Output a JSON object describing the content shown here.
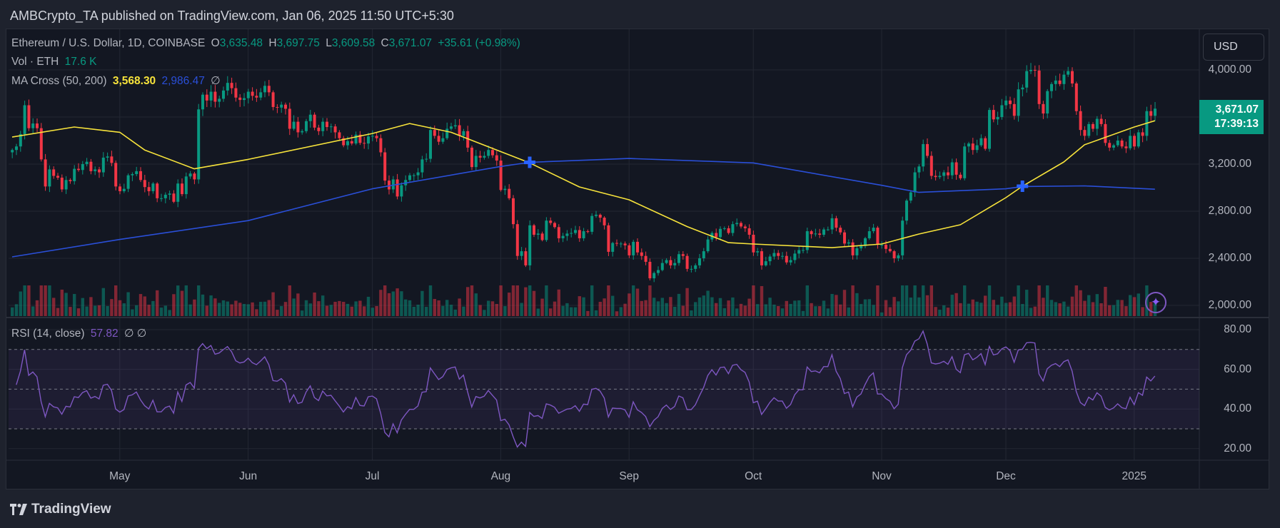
{
  "publisher_line": "AMBCrypto_TA published on TradingView.com, Jan 06, 2025 11:50 UTC+5:30",
  "legend": {
    "symbol": "Ethereum / U.S. Dollar, 1D, COINBASE",
    "o_label": "O",
    "o": "3,635.48",
    "h_label": "H",
    "h": "3,697.75",
    "l_label": "L",
    "l": "3,609.58",
    "c_label": "C",
    "c": "3,671.07",
    "change": "+35.61 (+0.98%)",
    "vol_label": "Vol · ETH",
    "vol": "17.6 K",
    "ma_label": "MA Cross (50, 200)",
    "ma50": "3,568.30",
    "ma200": "2,986.47",
    "ma_extra": "∅",
    "rsi_label": "RSI (14, close)",
    "rsi": "57.82",
    "rsi_extra": "∅ ∅"
  },
  "currency_button": "USD",
  "last_price": {
    "price": "3,671.07",
    "countdown": "17:39:13",
    "color": "#089981"
  },
  "footer_brand": "TradingView",
  "colors": {
    "up": "#089981",
    "down": "#f23645",
    "ma50": "#f7e33b",
    "ma200": "#2a4fd8",
    "rsi": "#7e57c2",
    "background": "#131722"
  },
  "chart_data": [
    {
      "type": "candlestick",
      "title": "Ethereum / U.S. Dollar, 1D, COINBASE",
      "ylim": [
        2000,
        4100
      ],
      "y_ticks": [
        {
          "value": 4000,
          "label": "4,000.00"
        },
        {
          "value": 3200,
          "label": "3,200.00"
        },
        {
          "value": 2800,
          "label": "2,800.00"
        },
        {
          "value": 2400,
          "label": "2,400.00"
        },
        {
          "value": 2000,
          "label": "2,000.00"
        }
      ],
      "x_ticks": [
        {
          "date": "2024-05-01",
          "label": "May"
        },
        {
          "date": "2024-06-01",
          "label": "Jun"
        },
        {
          "date": "2024-07-01",
          "label": "Jul"
        },
        {
          "date": "2024-08-01",
          "label": "Aug"
        },
        {
          "date": "2024-09-01",
          "label": "Sep"
        },
        {
          "date": "2024-10-01",
          "label": "Oct"
        },
        {
          "date": "2024-11-01",
          "label": "Nov"
        },
        {
          "date": "2024-12-01",
          "label": "Dec"
        },
        {
          "date": "2025-01-01",
          "label": "2025"
        }
      ],
      "grid": true,
      "daily_closes": [
        {
          "month": "2024-04",
          "first_day": 5,
          "closes": [
            3320,
            3350,
            3455,
            3700,
            3505,
            3545,
            3505,
            3240,
            3010,
            3155,
            3100,
            3085,
            2985,
            3065,
            3055,
            3160,
            3150,
            3200,
            3220,
            3140,
            3155,
            3130,
            3255,
            3265,
            3210,
            3010
          ]
        },
        {
          "month": "2024-05",
          "first_day": 1,
          "closes": [
            2970,
            2990,
            3105,
            3115,
            3140,
            3065,
            3005,
            2970,
            3035,
            2910,
            2910,
            2940,
            2950,
            2880,
            3035,
            2945,
            3095,
            3120,
            3070,
            3665,
            3790,
            3740,
            3815,
            3730,
            3755,
            3825,
            3890,
            3845,
            3765,
            3745,
            3760
          ]
        },
        {
          "month": "2024-06",
          "first_day": 1,
          "closes": [
            3815,
            3780,
            3765,
            3810,
            3865,
            3810,
            3685,
            3680,
            3705,
            3670,
            3500,
            3560,
            3470,
            3480,
            3565,
            3620,
            3510,
            3480,
            3560,
            3515,
            3520,
            3470,
            3420,
            3360,
            3395,
            3375,
            3450,
            3380,
            3375,
            3435
          ]
        },
        {
          "month": "2024-07",
          "first_day": 1,
          "closes": [
            3440,
            3420,
            3300,
            3060,
            2985,
            3070,
            2925,
            3020,
            3065,
            3105,
            3105,
            3130,
            3240,
            3245,
            3490,
            3440,
            3390,
            3420,
            3500,
            3520,
            3530,
            3440,
            3480,
            3340,
            3175,
            3270,
            3255,
            3270,
            3320,
            3275,
            3230
          ]
        },
        {
          "month": "2024-08",
          "first_day": 1,
          "closes": [
            2980,
            2990,
            2910,
            2690,
            2420,
            2460,
            2340,
            2680,
            2600,
            2610,
            2555,
            2720,
            2700,
            2665,
            2570,
            2590,
            2610,
            2615,
            2640,
            2570,
            2630,
            2625,
            2760,
            2770,
            2745,
            2680,
            2455,
            2530,
            2525,
            2525,
            2510
          ]
        },
        {
          "month": "2024-09",
          "first_day": 1,
          "closes": [
            2425,
            2540,
            2450,
            2420,
            2370,
            2230,
            2275,
            2300,
            2360,
            2385,
            2340,
            2360,
            2435,
            2420,
            2310,
            2310,
            2340,
            2400,
            2460,
            2560,
            2615,
            2580,
            2650,
            2655,
            2615,
            2690,
            2700,
            2670,
            2655,
            2600
          ]
        },
        {
          "month": "2024-10",
          "first_day": 1,
          "closes": [
            2450,
            2460,
            2340,
            2375,
            2415,
            2445,
            2420,
            2420,
            2365,
            2385,
            2440,
            2470,
            2470,
            2630,
            2605,
            2610,
            2600,
            2645,
            2645,
            2740,
            2660,
            2620,
            2525,
            2535,
            2425,
            2485,
            2505,
            2570,
            2630,
            2660,
            2515
          ]
        },
        {
          "month": "2024-11",
          "first_day": 1,
          "closes": [
            2515,
            2480,
            2460,
            2400,
            2425,
            2720,
            2890,
            2960,
            3130,
            3180,
            3370,
            3270,
            3100,
            3090,
            3100,
            3130,
            3105,
            3215,
            3110,
            3080,
            3350,
            3375,
            3320,
            3360,
            3420,
            3330,
            3660,
            3580,
            3600,
            3700
          ]
        },
        {
          "month": "2024-12",
          "first_day": 1,
          "closes": [
            3740,
            3710,
            3610,
            3835,
            3850,
            3990,
            4000,
            3995,
            3710,
            3630,
            3820,
            3880,
            3910,
            3880,
            3960,
            3990,
            3885,
            3650,
            3490,
            3440,
            3540,
            3500,
            3585,
            3540,
            3380,
            3340,
            3360,
            3400,
            3350,
            3335,
            3440
          ]
        },
        {
          "month": "2025-01",
          "first_day": 1,
          "closes": [
            3350,
            3470,
            3440,
            3650,
            3610,
            3671.07
          ]
        }
      ],
      "ma50": [
        [
          "2024-04-05",
          3430
        ],
        [
          "2024-04-20",
          3515
        ],
        [
          "2024-05-01",
          3470
        ],
        [
          "2024-05-07",
          3320
        ],
        [
          "2024-05-19",
          3160
        ],
        [
          "2024-06-01",
          3240
        ],
        [
          "2024-07-01",
          3460
        ],
        [
          "2024-07-10",
          3545
        ],
        [
          "2024-07-20",
          3470
        ],
        [
          "2024-08-08",
          3210
        ],
        [
          "2024-08-20",
          3006
        ],
        [
          "2024-09-01",
          2897
        ],
        [
          "2024-09-15",
          2670
        ],
        [
          "2024-09-25",
          2533
        ],
        [
          "2024-10-01",
          2521
        ],
        [
          "2024-10-20",
          2490
        ],
        [
          "2024-11-01",
          2521
        ],
        [
          "2024-11-10",
          2606
        ],
        [
          "2024-11-20",
          2685
        ],
        [
          "2024-12-01",
          2915
        ],
        [
          "2024-12-05",
          3012
        ],
        [
          "2024-12-15",
          3218
        ],
        [
          "2024-12-20",
          3364
        ],
        [
          "2025-01-01",
          3515
        ],
        [
          "2025-01-06",
          3568.3
        ]
      ],
      "ma200": [
        [
          "2024-04-05",
          2412
        ],
        [
          "2024-05-01",
          2560
        ],
        [
          "2024-06-01",
          2720
        ],
        [
          "2024-07-01",
          2990
        ],
        [
          "2024-08-01",
          3180
        ],
        [
          "2024-08-08",
          3215
        ],
        [
          "2024-09-01",
          3248
        ],
        [
          "2024-10-01",
          3210
        ],
        [
          "2024-11-01",
          3020
        ],
        [
          "2024-11-10",
          2960
        ],
        [
          "2024-12-01",
          2990
        ],
        [
          "2024-12-05",
          3010
        ],
        [
          "2024-12-20",
          3015
        ],
        [
          "2025-01-06",
          2986.47
        ]
      ],
      "cross_markers": [
        {
          "date": "2024-08-08",
          "price": 3215
        },
        {
          "date": "2024-12-05",
          "price": 3012
        }
      ]
    },
    {
      "type": "line",
      "title": "RSI (14, close)",
      "ylim": [
        15,
        85
      ],
      "y_ticks": [
        {
          "value": 80,
          "label": "80.00"
        },
        {
          "value": 60,
          "label": "60.00"
        },
        {
          "value": 40,
          "label": "40.00"
        },
        {
          "value": 20,
          "label": "20.00"
        }
      ],
      "bands": {
        "upper": 70,
        "middle": 50,
        "lower": 30
      },
      "last_value": 57.82
    }
  ]
}
